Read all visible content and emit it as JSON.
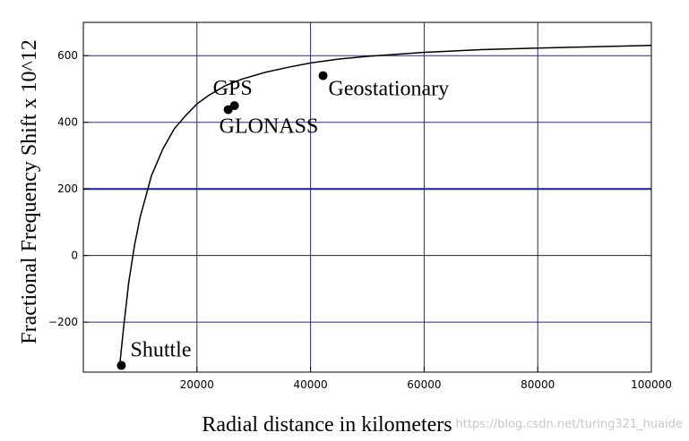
{
  "chart_data": {
    "type": "line",
    "xlabel": "Radial distance in kilometers",
    "ylabel": "Fractional Frequency Shift x 10^12",
    "xlim": [
      0,
      100000
    ],
    "ylim": [
      -350,
      700
    ],
    "xticks": [
      20000,
      40000,
      60000,
      80000,
      100000
    ],
    "yticks": [
      -200,
      0,
      200,
      400,
      600
    ],
    "grid": true,
    "series": [
      {
        "x": [
          6400,
          7000,
          8000,
          9000,
          10000,
          12000,
          14000,
          16000,
          18000,
          20000,
          22000,
          25000,
          28000,
          32000,
          36000,
          40000,
          45000,
          50000,
          60000,
          70000,
          80000,
          90000,
          100000
        ],
        "values": [
          -330,
          -230,
          -80,
          30,
          115,
          240,
          320,
          380,
          420,
          455,
          480,
          510,
          530,
          550,
          565,
          578,
          590,
          598,
          610,
          618,
          623,
          627,
          631
        ]
      }
    ],
    "points": [
      {
        "label": "Shuttle",
        "x": 6700,
        "y": -330
      },
      {
        "label": "GLONASS",
        "x": 25500,
        "y": 438
      },
      {
        "label": "GPS",
        "x": 26600,
        "y": 450
      },
      {
        "label": "Geostationary",
        "x": 42200,
        "y": 540
      }
    ]
  },
  "watermark": "https://blog.csdn.net/turing321_huaide",
  "colors": {
    "grid_minor": "#2b2b6e",
    "grid_major": "#1f1f8c",
    "curve": "#000000",
    "axis": "#000000"
  }
}
